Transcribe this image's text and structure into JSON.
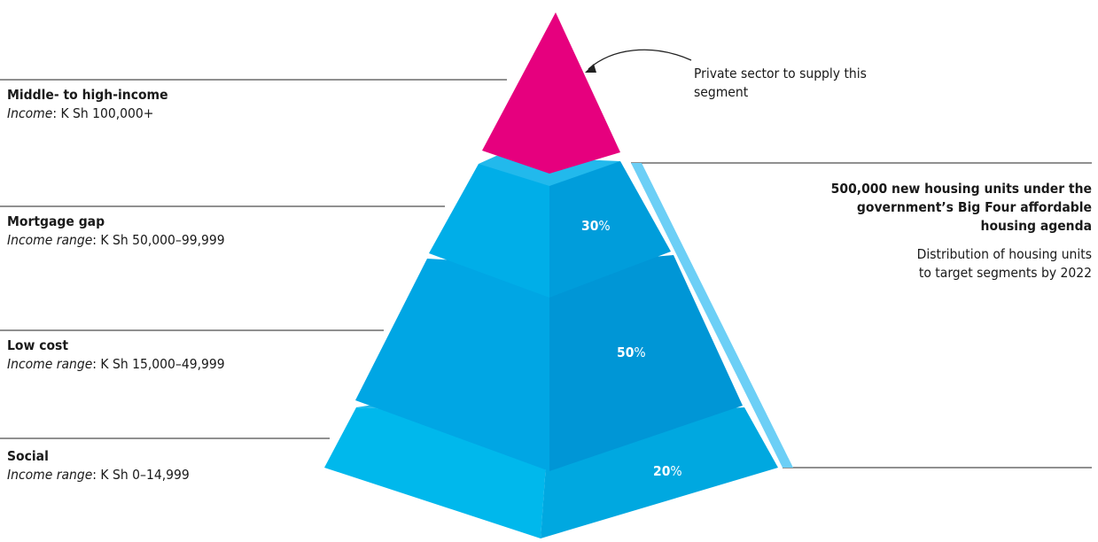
{
  "segments": [
    {
      "title": "Middle- to high-income",
      "income_label": "Income",
      "income_value": ": K Sh 100,000+"
    },
    {
      "title": "Mortgage gap",
      "income_label": "Income range",
      "income_value": ":  K Sh 50,000–99,999"
    },
    {
      "title": "Low cost",
      "income_label": "Income range",
      "income_value": ": K Sh 15,000–49,999"
    },
    {
      "title": "Social",
      "income_label": "Income range",
      "income_value": ": K Sh 0–14,999"
    }
  ],
  "callout": {
    "private_sector": "Private sector to supply this segment"
  },
  "agenda": {
    "title": "500,000 new housing units under the government’s Big Four affordable housing agenda",
    "subtitle": "Distribution of housing units to target segments by 2022"
  },
  "tiers": [
    {
      "value": "30",
      "unit": "%"
    },
    {
      "value": "50",
      "unit": "%"
    },
    {
      "value": "20",
      "unit": "%"
    }
  ],
  "colors": {
    "apex_magenta": "#e6007e",
    "tier_blue": "#00a6e4",
    "tier_blue_light": "#26c3f0",
    "bracket_blue": "#6ccff6"
  }
}
